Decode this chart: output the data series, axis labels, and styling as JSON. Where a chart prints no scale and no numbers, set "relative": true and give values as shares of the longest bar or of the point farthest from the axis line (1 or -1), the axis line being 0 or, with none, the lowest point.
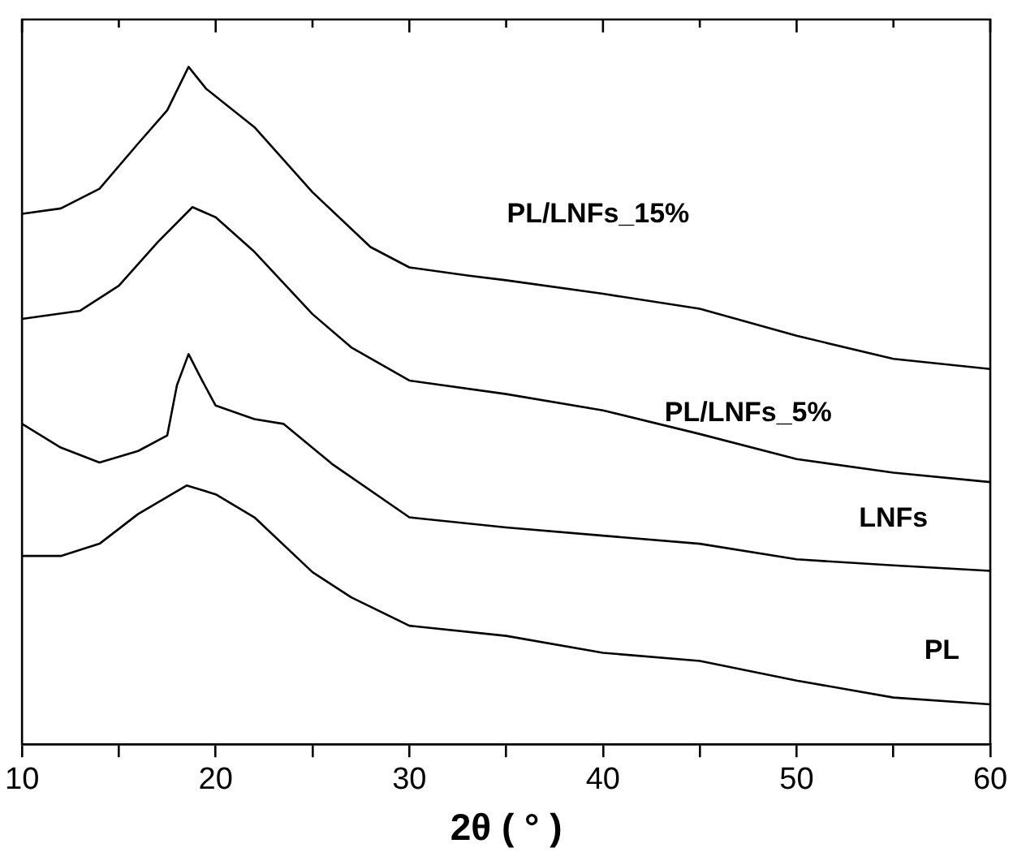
{
  "chart_data": {
    "type": "line",
    "relative": true,
    "xlabel": "2θ ( ° )",
    "xlim": [
      10,
      60
    ],
    "xticks": [
      10,
      {
        "value": 15,
        "label": null
      },
      20,
      {
        "value": 25,
        "label": null
      },
      30,
      {
        "value": 35,
        "label": null
      },
      40,
      {
        "value": 45,
        "label": null
      },
      50,
      {
        "value": 55,
        "label": null
      },
      60
    ],
    "grid": false,
    "legend": false,
    "marker": "none",
    "line_style": "solid",
    "series": [
      {
        "name": "PL/LNFs_15%",
        "color": "#000000",
        "x": [
          10,
          12,
          14,
          16,
          17.5,
          18.6,
          19.5,
          22,
          25,
          28,
          30,
          33,
          35,
          40,
          45,
          50,
          55,
          60
        ],
        "values": [
          0.783,
          0.791,
          0.82,
          0.887,
          0.936,
          1.0,
          0.968,
          0.911,
          0.815,
          0.734,
          0.704,
          0.692,
          0.685,
          0.665,
          0.643,
          0.603,
          0.569,
          0.554
        ]
      },
      {
        "name": "PL/LNFs_5%",
        "color": "#000000",
        "x": [
          10,
          13,
          15,
          17,
          18.8,
          20,
          22,
          25,
          27,
          30,
          35,
          40,
          45,
          50,
          55,
          60
        ],
        "values": [
          0.628,
          0.64,
          0.677,
          0.741,
          0.793,
          0.778,
          0.727,
          0.635,
          0.586,
          0.537,
          0.517,
          0.493,
          0.458,
          0.421,
          0.401,
          0.387
        ]
      },
      {
        "name": "LNFs",
        "color": "#000000",
        "x": [
          10,
          12,
          14,
          16,
          17.5,
          18,
          18.6,
          19.3,
          20,
          22,
          23.5,
          26,
          30,
          35,
          40,
          45,
          50,
          55,
          60
        ],
        "values": [
          0.473,
          0.438,
          0.416,
          0.433,
          0.456,
          0.53,
          0.576,
          0.537,
          0.5,
          0.48,
          0.473,
          0.414,
          0.335,
          0.32,
          0.308,
          0.296,
          0.273,
          0.264,
          0.256
        ]
      },
      {
        "name": "PL",
        "color": "#000000",
        "x": [
          10,
          12,
          14,
          16,
          18.5,
          20,
          22,
          25,
          27,
          30,
          35,
          40,
          45,
          50,
          55,
          60
        ],
        "values": [
          0.278,
          0.278,
          0.296,
          0.34,
          0.382,
          0.369,
          0.335,
          0.254,
          0.217,
          0.175,
          0.16,
          0.135,
          0.123,
          0.094,
          0.069,
          0.059
        ]
      }
    ]
  }
}
